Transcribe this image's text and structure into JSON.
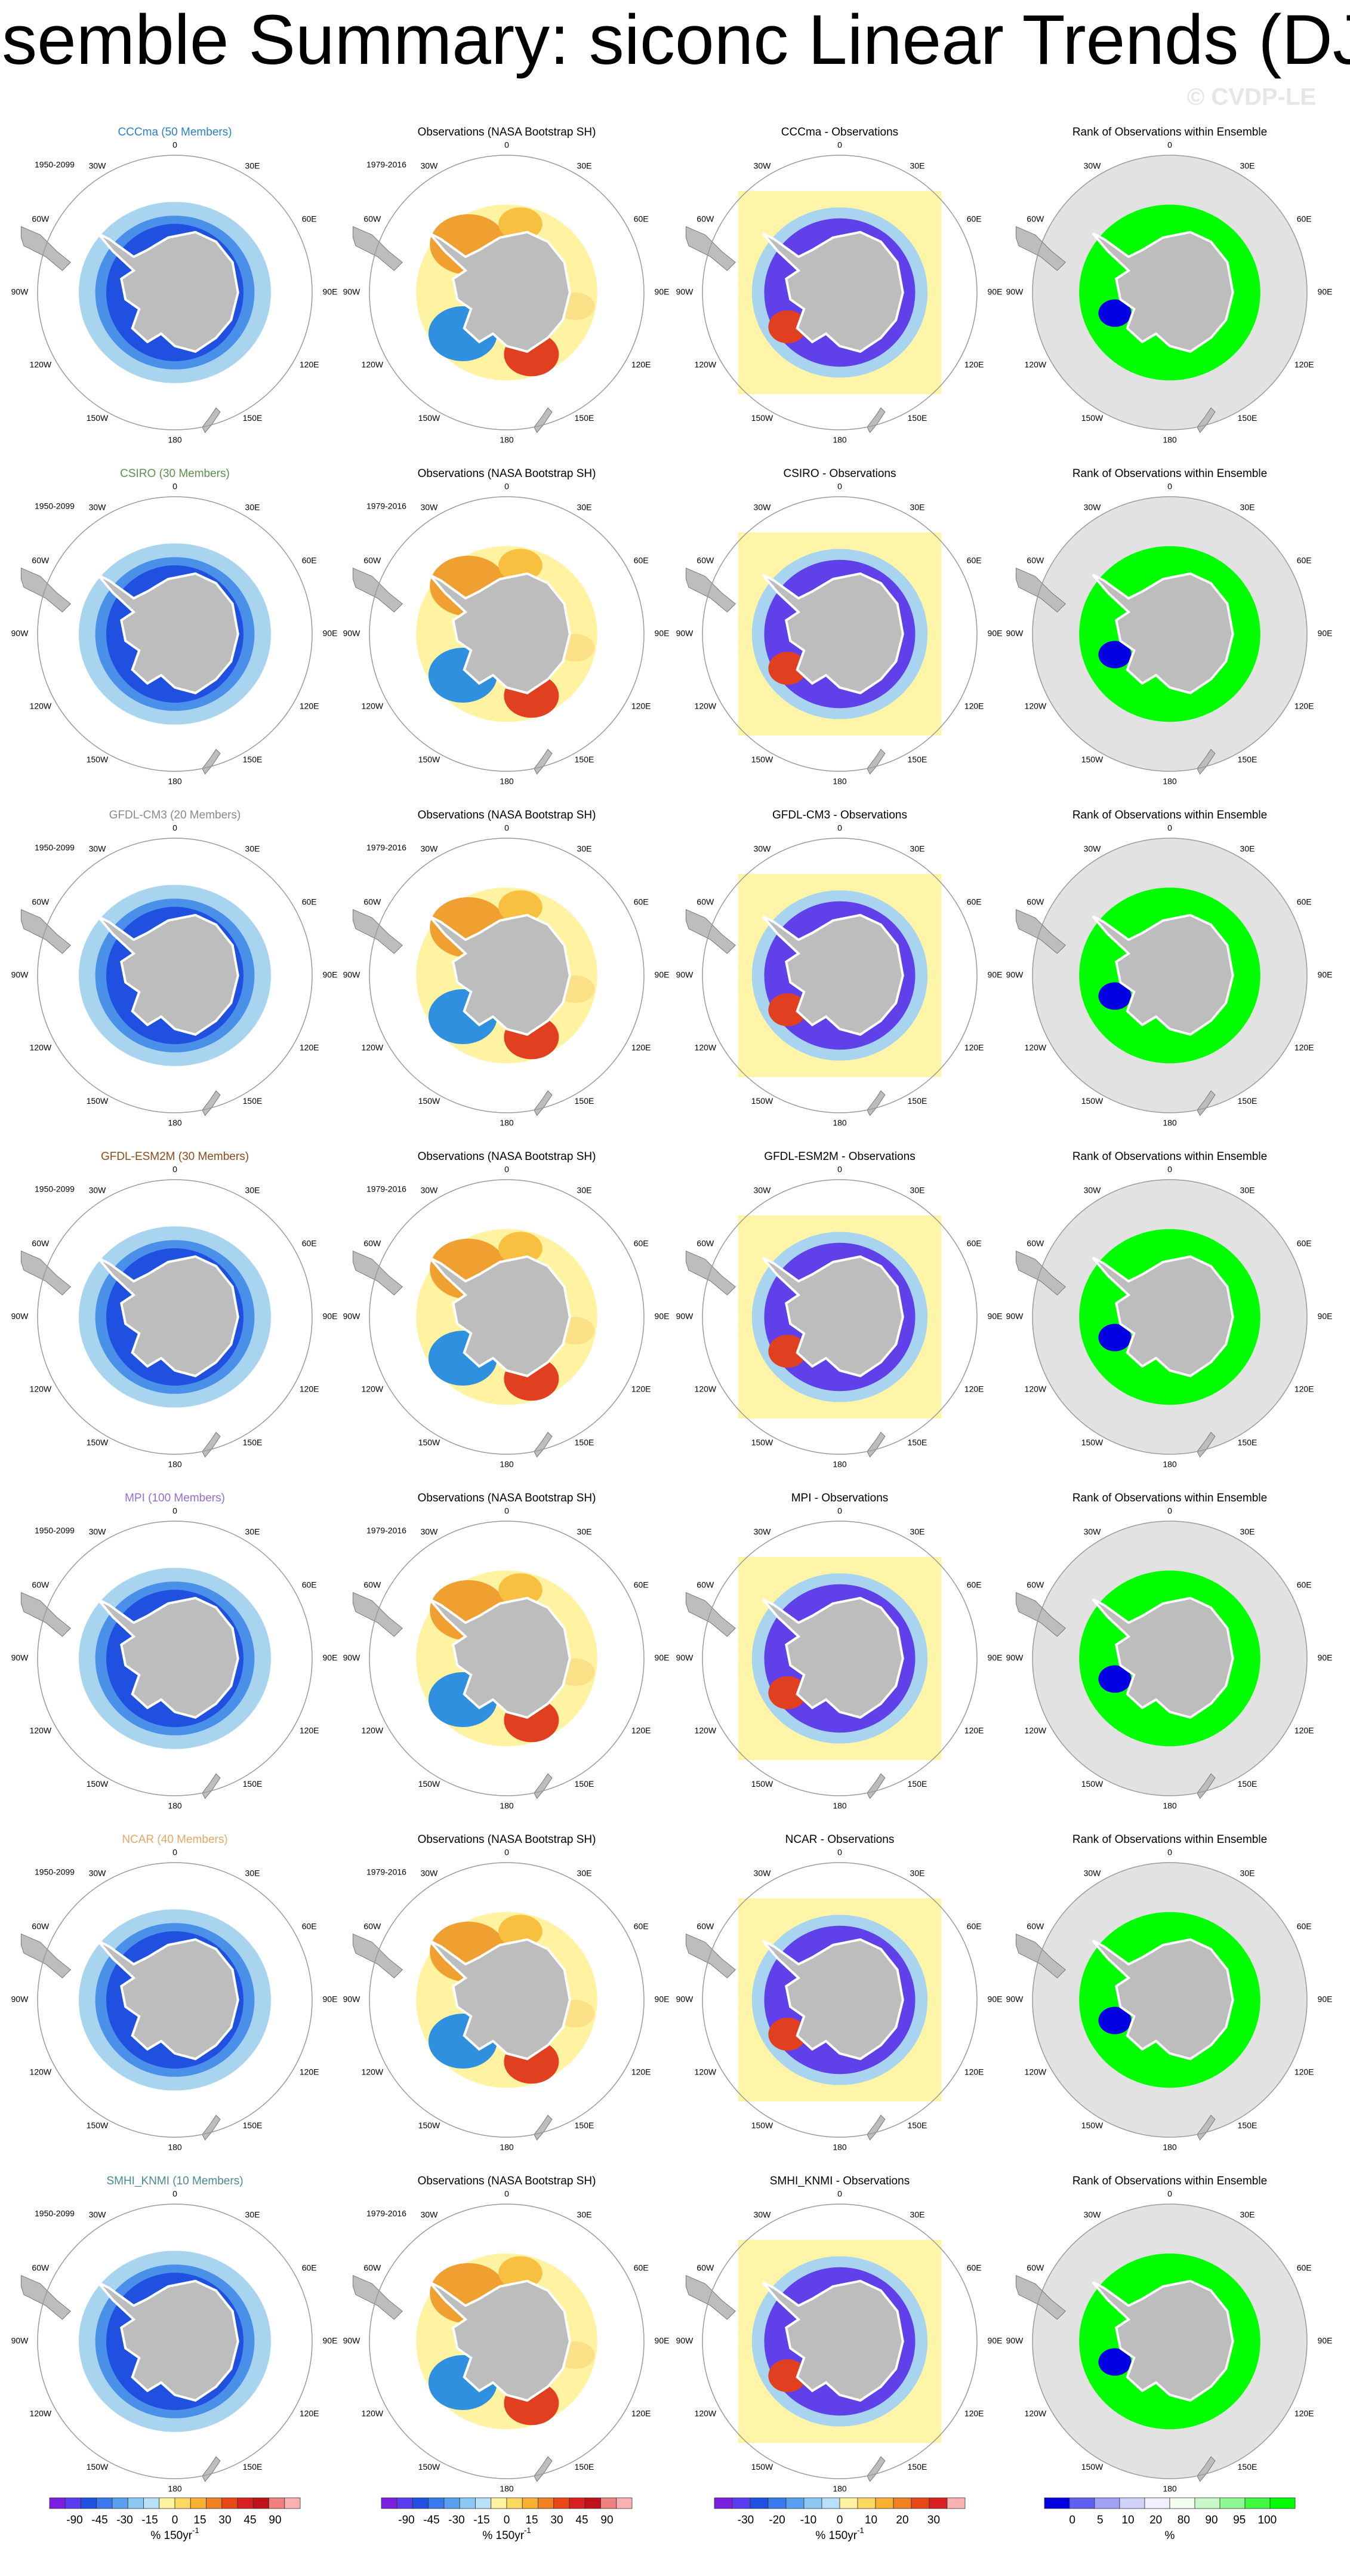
{
  "header": {
    "title": "Ensemble Summary: siconc Linear Trends (DJF)",
    "watermark": "© CVDP-LE"
  },
  "longitude_labels": [
    "0",
    "30E",
    "60E",
    "90E",
    "120E",
    "150E",
    "180",
    "150W",
    "120W",
    "90W",
    "60W",
    "30W"
  ],
  "rows": [
    {
      "model_title": "CCCma (50 Members)",
      "title_color": "#2d7fc1",
      "model_period": "1950-2099",
      "obs_title": "Observations (NASA Bootstrap SH)",
      "obs_period": "1979-2016",
      "diff_title": "CCCma - Observations",
      "rank_title": "Rank of Observations within Ensemble"
    },
    {
      "model_title": "CSIRO (30 Members)",
      "title_color": "#5f8f4f",
      "model_period": "1950-2099",
      "obs_title": "Observations (NASA Bootstrap SH)",
      "obs_period": "1979-2016",
      "diff_title": "CSIRO - Observations",
      "rank_title": "Rank of Observations within Ensemble"
    },
    {
      "model_title": "GFDL-CM3 (20 Members)",
      "title_color": "#8a8a8a",
      "model_period": "1950-2099",
      "obs_title": "Observations (NASA Bootstrap SH)",
      "obs_period": "1979-2016",
      "diff_title": "GFDL-CM3 - Observations",
      "rank_title": "Rank of Observations within Ensemble"
    },
    {
      "model_title": "GFDL-ESM2M (30 Members)",
      "title_color": "#8b4a1a",
      "model_period": "1950-2099",
      "obs_title": "Observations (NASA Bootstrap SH)",
      "obs_period": "1979-2016",
      "diff_title": "GFDL-ESM2M - Observations",
      "rank_title": "Rank of Observations within Ensemble"
    },
    {
      "model_title": "MPI (100 Members)",
      "title_color": "#9a6bd6",
      "model_period": "1950-2099",
      "obs_title": "Observations (NASA Bootstrap SH)",
      "obs_period": "1979-2016",
      "diff_title": "MPI - Observations",
      "rank_title": "Rank of Observations within Ensemble"
    },
    {
      "model_title": "NCAR (40 Members)",
      "title_color": "#e2a868",
      "model_period": "1950-2099",
      "obs_title": "Observations (NASA Bootstrap SH)",
      "obs_period": "1979-2016",
      "diff_title": "NCAR - Observations",
      "rank_title": "Rank of Observations within Ensemble"
    },
    {
      "model_title": "SMHI_KNMI (10 Members)",
      "title_color": "#4a8a8e",
      "model_period": "1950-2099",
      "obs_title": "Observations (NASA Bootstrap SH)",
      "obs_period": "1979-2016",
      "diff_title": "SMHI_KNMI - Observations",
      "rank_title": "Rank of Observations within Ensemble"
    }
  ],
  "colorbars": [
    {
      "labels": [
        "-90",
        "-45",
        "-30",
        "-15",
        "0",
        "15",
        "30",
        "45",
        "90"
      ],
      "unit": "% 150yr",
      "unit_exponent": "-1"
    },
    {
      "labels": [
        "-90",
        "-45",
        "-30",
        "-15",
        "0",
        "15",
        "30",
        "45",
        "90"
      ],
      "unit": "% 150yr",
      "unit_exponent": "-1"
    },
    {
      "labels": [
        "-30",
        "-20",
        "-10",
        "0",
        "10",
        "20",
        "30"
      ],
      "unit": "% 150yr",
      "unit_exponent": "-1"
    },
    {
      "labels": [
        "0",
        "5",
        "10",
        "20",
        "80",
        "90",
        "95",
        "100"
      ],
      "unit": "%"
    }
  ]
}
